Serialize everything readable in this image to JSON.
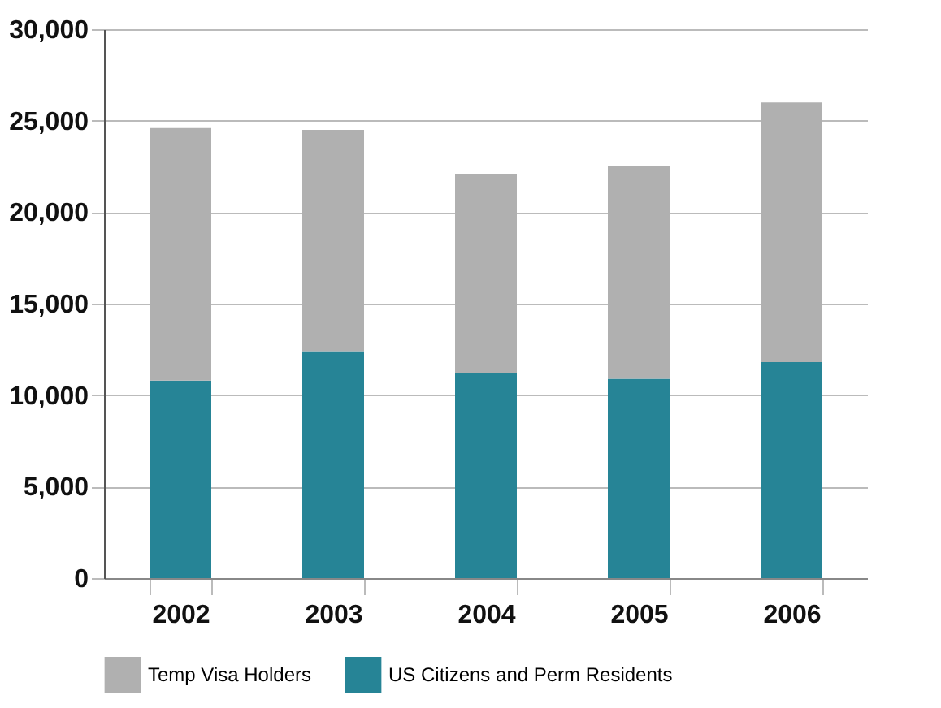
{
  "chart_data": {
    "type": "bar",
    "stacked": true,
    "categories": [
      "2002",
      "2003",
      "2004",
      "2005",
      "2006"
    ],
    "series": [
      {
        "name": "US Citizens and Perm Residents",
        "color": "#268496",
        "values": [
          10800,
          12400,
          11200,
          10900,
          11800
        ]
      },
      {
        "name": "Temp Visa Holders",
        "color": "#b0b0b0",
        "values": [
          13800,
          12100,
          10900,
          11600,
          14200
        ]
      }
    ],
    "ylim": [
      0,
      30000
    ],
    "yticks": [
      0,
      {
        "value": 5000,
        "label": "5,000"
      },
      {
        "value": 10000,
        "label": "10,000"
      },
      {
        "value": 15000,
        "label": "15,000"
      },
      {
        "value": 20000,
        "label": "20,000"
      },
      {
        "value": 25000,
        "label": "25,000"
      },
      {
        "value": 30000,
        "label": "30,000"
      }
    ],
    "grid": "y",
    "legend": "bottom"
  }
}
